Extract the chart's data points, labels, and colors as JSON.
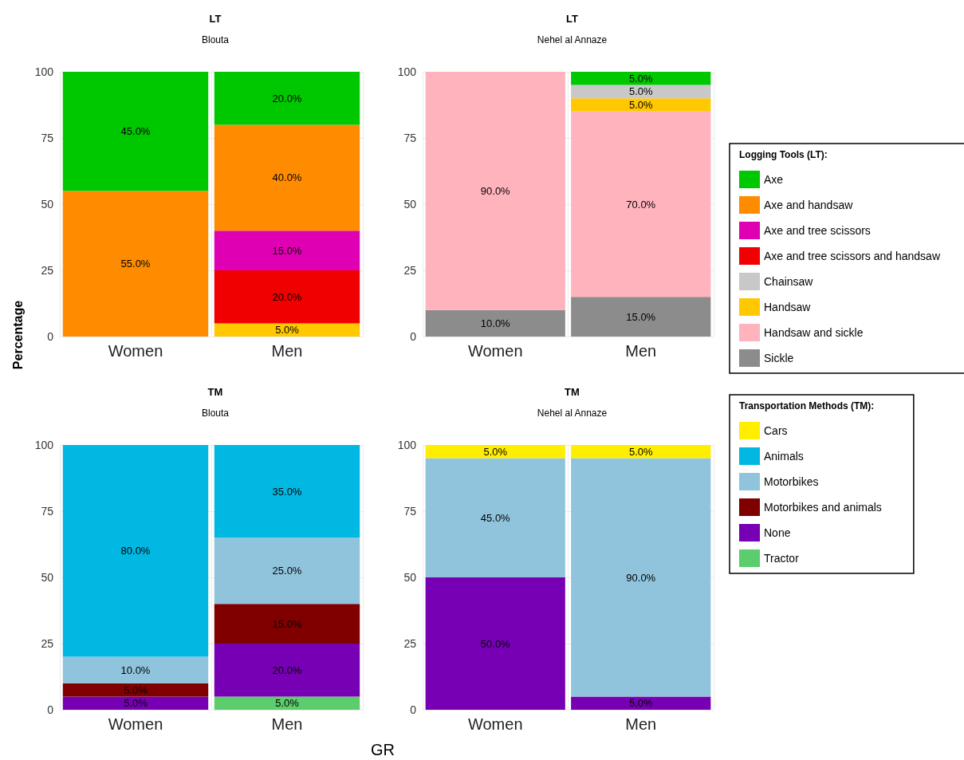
{
  "chart_data": [
    {
      "type": "bar",
      "title": "LT",
      "subtitle": "Blouta",
      "ylabel": "Percentage",
      "categories": [
        "Women",
        "Men"
      ],
      "stacked": true,
      "ylim": [
        0,
        100
      ],
      "yticks": [
        0,
        25,
        50,
        75,
        100
      ],
      "grid": true,
      "legend": false,
      "series": [
        {
          "color": "#ffc800",
          "values": [
            null,
            5
          ],
          "value_labels": [
            null,
            "5.0%"
          ]
        },
        {
          "color": "#f00000",
          "values": [
            null,
            20
          ],
          "value_labels": [
            null,
            "20.0%"
          ]
        },
        {
          "color": "#e000b4",
          "values": [
            null,
            15
          ],
          "value_labels": [
            null,
            "15.0%"
          ]
        },
        {
          "color": "#ff8c00",
          "values": [
            55,
            40
          ],
          "value_labels": [
            "55.0%",
            "40.0%"
          ]
        },
        {
          "color": "#00c800",
          "values": [
            45,
            20
          ],
          "value_labels": [
            "45.0%",
            "20.0%"
          ]
        }
      ]
    },
    {
      "type": "bar",
      "title": "LT",
      "subtitle": "Nehel al Annaze",
      "categories": [
        "Women",
        "Men"
      ],
      "stacked": true,
      "ylim": [
        0,
        100
      ],
      "yticks": [
        0,
        25,
        50,
        75,
        100
      ],
      "grid": true,
      "legend": "right",
      "legend_title": "Logging Tools (LT):",
      "series": [
        {
          "name": "Sickle",
          "color": "#8c8c8c",
          "values": [
            10,
            15
          ],
          "value_labels": [
            "10.0%",
            "15.0%"
          ]
        },
        {
          "name": "Handsaw and sickle",
          "color": "#ffb3bd",
          "values": [
            90,
            70
          ],
          "value_labels": [
            "90.0%",
            "70.0%"
          ]
        },
        {
          "name": "Handsaw",
          "color": "#ffc800",
          "values": [
            null,
            5
          ],
          "value_labels": [
            null,
            "5.0%"
          ]
        },
        {
          "name": "Chainsaw",
          "color": "#c8c8c8",
          "values": [
            null,
            5
          ],
          "value_labels": [
            null,
            "5.0%"
          ]
        },
        {
          "name": "Axe and tree scissors and handsaw",
          "color": "#f00000",
          "values": [
            null,
            null
          ],
          "value_labels": [
            null,
            null
          ]
        },
        {
          "name": "Axe and tree scissors",
          "color": "#e000b4",
          "values": [
            null,
            null
          ],
          "value_labels": [
            null,
            null
          ]
        },
        {
          "name": "Axe and handsaw",
          "color": "#ff8c00",
          "values": [
            null,
            null
          ],
          "value_labels": [
            null,
            null
          ]
        },
        {
          "name": "Axe",
          "color": "#00c800",
          "values": [
            null,
            5
          ],
          "value_labels": [
            null,
            "5.0%"
          ]
        }
      ]
    },
    {
      "type": "bar",
      "title": "TM",
      "subtitle": "Blouta",
      "categories": [
        "Women",
        "Men"
      ],
      "stacked": true,
      "ylim": [
        0,
        100
      ],
      "yticks": [
        0,
        25,
        50,
        75,
        100
      ],
      "grid": true,
      "legend": false,
      "series": [
        {
          "color": "#5ccd6c",
          "values": [
            null,
            5
          ],
          "value_labels": [
            null,
            "5.0%"
          ]
        },
        {
          "color": "#7700b4",
          "values": [
            5,
            20
          ],
          "value_labels": [
            "5.0%",
            "20.0%"
          ]
        },
        {
          "color": "#800000",
          "values": [
            5,
            15
          ],
          "value_labels": [
            "5.0%",
            "15.0%"
          ]
        },
        {
          "color": "#8fc4dc",
          "values": [
            10,
            25
          ],
          "value_labels": [
            "10.0%",
            "25.0%"
          ]
        },
        {
          "color": "#00b8e2",
          "values": [
            80,
            35
          ],
          "value_labels": [
            "80.0%",
            "35.0%"
          ]
        }
      ]
    },
    {
      "type": "bar",
      "title": "TM",
      "subtitle": "Nehel al Annaze",
      "xlabel": "GR",
      "categories": [
        "Women",
        "Men"
      ],
      "stacked": true,
      "ylim": [
        0,
        100
      ],
      "yticks": [
        0,
        25,
        50,
        75,
        100
      ],
      "grid": true,
      "legend": "right",
      "legend_title": "Transportation Methods (TM):",
      "series": [
        {
          "name": "Tractor",
          "color": "#5ccd6c",
          "values": [
            null,
            null
          ],
          "value_labels": [
            null,
            null
          ]
        },
        {
          "name": "None",
          "color": "#7700b4",
          "values": [
            50,
            5
          ],
          "value_labels": [
            "50.0%",
            "5.0%"
          ]
        },
        {
          "name": "Motorbikes and animals",
          "color": "#800000",
          "values": [
            null,
            null
          ],
          "value_labels": [
            null,
            null
          ]
        },
        {
          "name": "Motorbikes",
          "color": "#8fc4dc",
          "values": [
            45,
            90
          ],
          "value_labels": [
            "45.0%",
            "90.0%"
          ]
        },
        {
          "name": "Animals",
          "color": "#00b8e2",
          "values": [
            null,
            null
          ],
          "value_labels": [
            null,
            null
          ]
        },
        {
          "name": "Cars",
          "color": "#ffee00",
          "values": [
            5,
            5
          ],
          "value_labels": [
            "5.0%",
            "5.0%"
          ]
        }
      ]
    }
  ]
}
